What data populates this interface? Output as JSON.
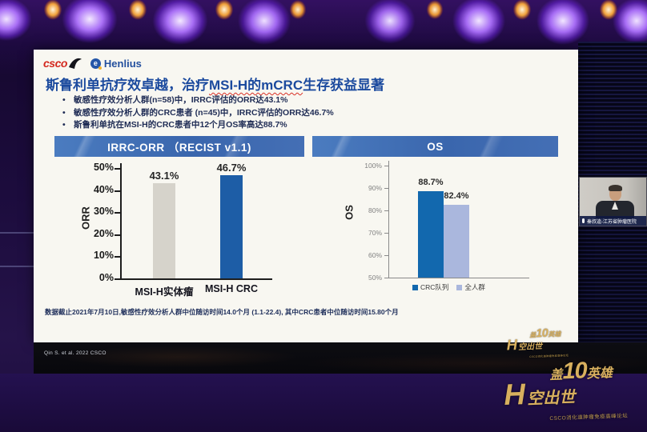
{
  "colors": {
    "slide_bg": "#f8f7f1",
    "title_blue": "#1b4a9e",
    "header_bar_blue": "#4472b8",
    "orr_bar_gray": "#d6d3cb",
    "orr_bar_blue": "#1d5da6",
    "os_bar_blue": "#1268ae",
    "os_bar_light": "#aab7dd",
    "gold": "#d8b05e"
  },
  "logos": {
    "csco": "csco",
    "henlius": "Henlius",
    "henlius_mark": "e"
  },
  "slide": {
    "title_parts": [
      "斯鲁利单抗疗效卓越，治疗",
      "MSI-H的mCRC",
      "生存获益显著"
    ],
    "bullets": [
      "敏感性疗效分析人群(n=58)中，IRRC评估的ORR达43.1%",
      "敏感性疗效分析人群的CRC患者 (n=45)中，IRRC评估的ORR达46.7%",
      "斯鲁利单抗在MSI-H的CRC患者中12个月OS率高达88.7%"
    ],
    "footnote": "数据截止2021年7月10日,敏感性疗效分析人群中位随访时间14.0个月 (1.1-22.4), 其中CRC患者中位随访时间15.80个月"
  },
  "chart_data": [
    {
      "type": "bar",
      "title": "IRRC-ORR （RECIST v1.1)",
      "ylabel": "ORR",
      "categories": [
        "MSI-H实体瘤",
        "MSI-H CRC"
      ],
      "values": [
        43.1,
        46.7
      ],
      "labels": [
        "43.1%",
        "46.7%"
      ],
      "bar_colors": [
        "#d6d3cb",
        "#1d5da6"
      ],
      "ylim": [
        0,
        50
      ],
      "ytick_step": 10,
      "grid": false,
      "legend_position": "none"
    },
    {
      "type": "bar",
      "title": "OS",
      "ylabel": "OS",
      "categories": [
        "CRC队列",
        "全人群"
      ],
      "values": [
        88.7,
        82.4
      ],
      "labels": [
        "88.7%",
        "82.4%"
      ],
      "bar_colors": [
        "#1268ae",
        "#aab7dd"
      ],
      "ylim": [
        50,
        100
      ],
      "ytick_step": 10,
      "grid": false,
      "legend_position": "bottom"
    }
  ],
  "citation": "Qin S. et al. 2022 CSCO",
  "event_logo": {
    "l1a": "盖",
    "l1b": "10",
    "l1c": "英雄",
    "l2a": "H",
    "l2b": "空出世",
    "subtitle": "CSCO消化道肿瘤免疫高峰论坛"
  },
  "webcam": {
    "caption": "秦叔逵-江苏省肿瘤医院"
  }
}
